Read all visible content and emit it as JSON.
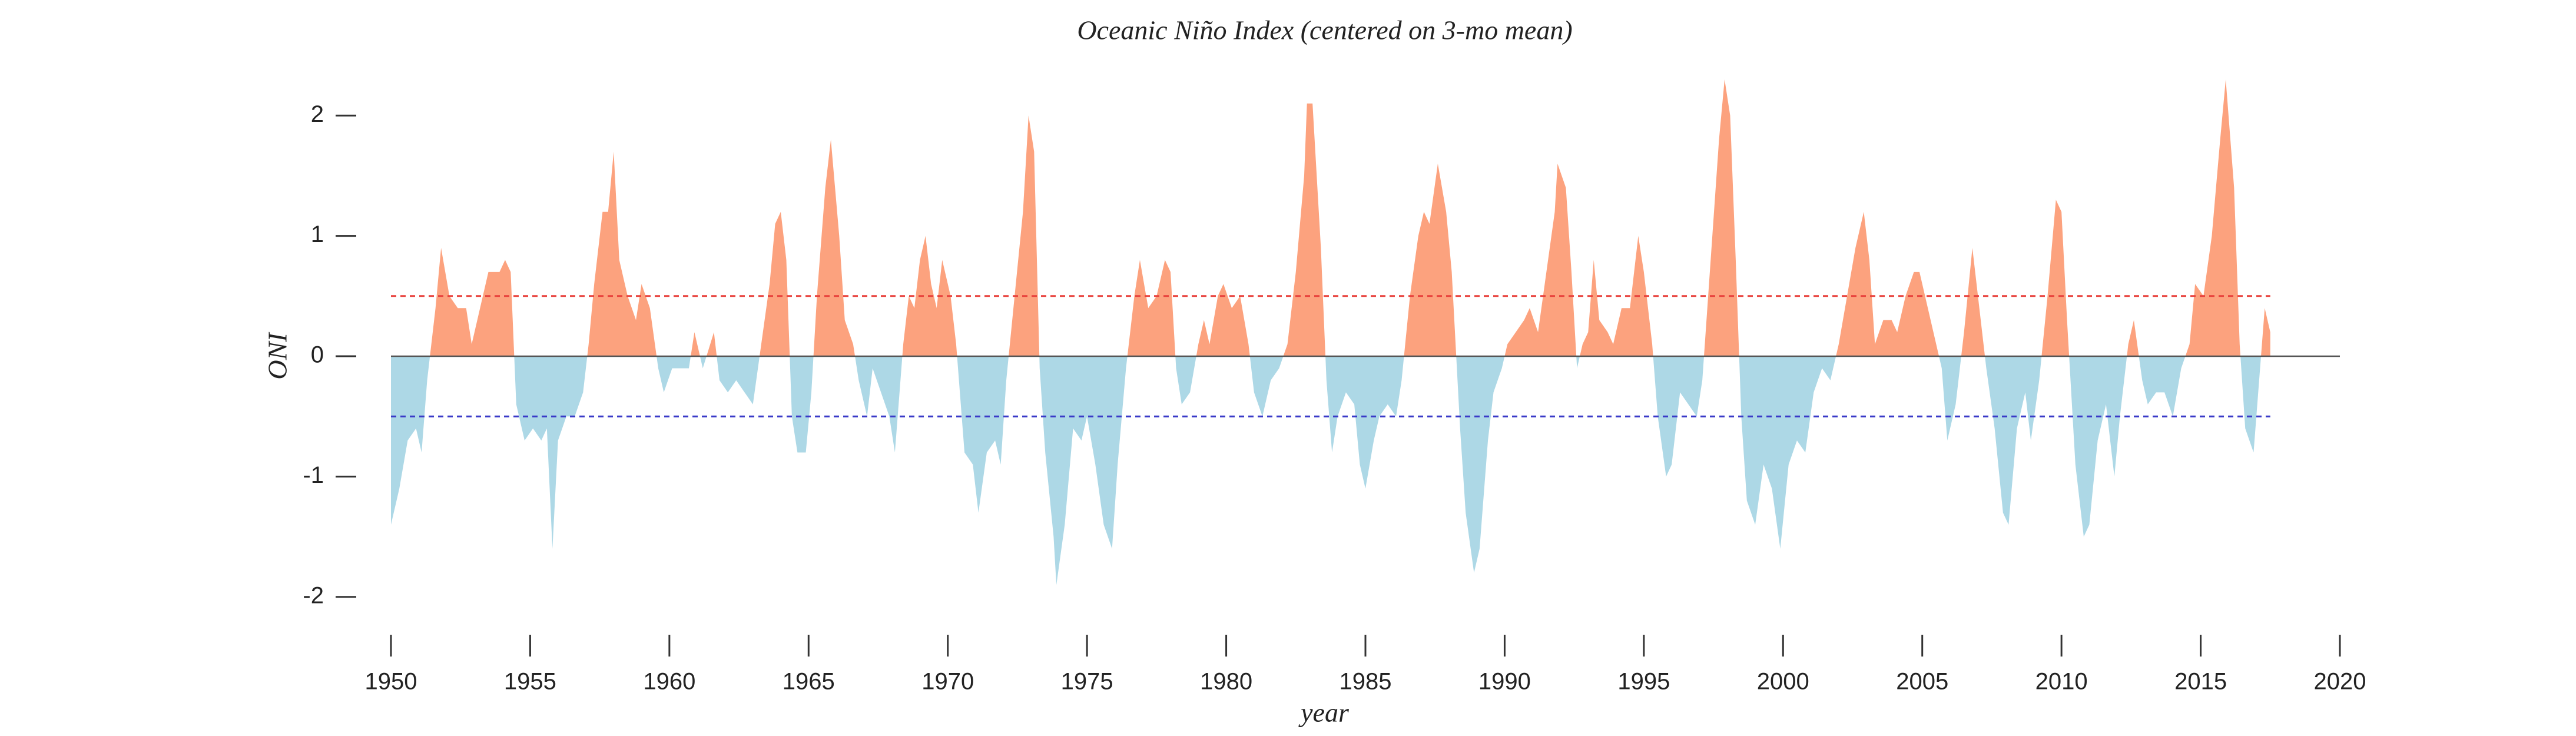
{
  "chart_data": {
    "type": "area",
    "title": "Oceanic Niño Index (centered on 3-mo mean)",
    "x_label": "year",
    "y_label": "ONI",
    "positive_color": "#fca27e",
    "negative_color": "#add8e6",
    "xlim": [
      1950,
      2020
    ],
    "xticks": [
      1950,
      1955,
      1960,
      1965,
      1970,
      1975,
      1980,
      1985,
      1990,
      1995,
      2000,
      2005,
      2010,
      2015,
      2020
    ],
    "ylim": [
      -2.5,
      2.5
    ],
    "yticks": [
      -2,
      -1,
      0,
      1,
      2
    ],
    "reference_lines": [
      {
        "value": 0,
        "color": "#555555",
        "dash": false,
        "full_width": true
      },
      {
        "value": 0.5,
        "color": "#e8403b",
        "dash": true,
        "full_width": false
      },
      {
        "value": -0.5,
        "color": "#3a3ac8",
        "dash": true,
        "full_width": false
      }
    ],
    "x": [
      1950.0,
      1950.3,
      1950.6,
      1950.9,
      1951.1,
      1951.3,
      1951.6,
      1951.8,
      1952.1,
      1952.4,
      1952.7,
      1952.9,
      1953.2,
      1953.5,
      1953.9,
      1954.1,
      1954.3,
      1954.5,
      1954.8,
      1955.1,
      1955.4,
      1955.6,
      1955.8,
      1956.0,
      1956.3,
      1956.6,
      1956.9,
      1957.1,
      1957.3,
      1957.6,
      1957.8,
      1958.0,
      1958.2,
      1958.5,
      1958.8,
      1959.0,
      1959.3,
      1959.6,
      1959.8,
      1960.1,
      1960.4,
      1960.7,
      1960.9,
      1961.2,
      1961.6,
      1961.8,
      1962.1,
      1962.4,
      1962.7,
      1963.0,
      1963.3,
      1963.6,
      1963.8,
      1964.0,
      1964.2,
      1964.4,
      1964.6,
      1964.9,
      1965.1,
      1965.3,
      1965.6,
      1965.8,
      1966.1,
      1966.3,
      1966.6,
      1966.8,
      1967.1,
      1967.3,
      1967.6,
      1967.9,
      1968.1,
      1968.4,
      1968.6,
      1968.8,
      1969.0,
      1969.2,
      1969.4,
      1969.6,
      1969.8,
      1970.1,
      1970.3,
      1970.6,
      1970.9,
      1971.1,
      1971.4,
      1971.7,
      1971.9,
      1972.1,
      1972.4,
      1972.7,
      1972.9,
      1973.1,
      1973.3,
      1973.5,
      1973.8,
      1973.9,
      1974.2,
      1974.5,
      1974.8,
      1975.0,
      1975.3,
      1975.6,
      1975.9,
      1976.1,
      1976.4,
      1976.7,
      1976.9,
      1977.2,
      1977.5,
      1977.8,
      1978.0,
      1978.2,
      1978.4,
      1978.7,
      1979.0,
      1979.2,
      1979.4,
      1979.7,
      1979.9,
      1980.2,
      1980.5,
      1980.8,
      1981.0,
      1981.3,
      1981.6,
      1981.9,
      1982.2,
      1982.5,
      1982.8,
      1982.9,
      1983.1,
      1983.4,
      1983.6,
      1983.8,
      1984.0,
      1984.3,
      1984.6,
      1984.8,
      1985.0,
      1985.3,
      1985.5,
      1985.8,
      1986.1,
      1986.3,
      1986.6,
      1986.9,
      1987.1,
      1987.3,
      1987.6,
      1987.9,
      1988.1,
      1988.4,
      1988.6,
      1988.9,
      1989.1,
      1989.4,
      1989.6,
      1989.9,
      1990.1,
      1990.4,
      1990.7,
      1990.9,
      1991.2,
      1991.5,
      1991.8,
      1991.9,
      1992.2,
      1992.4,
      1992.6,
      1992.8,
      1993.0,
      1993.2,
      1993.4,
      1993.7,
      1993.9,
      1994.2,
      1994.5,
      1994.8,
      1995.0,
      1995.3,
      1995.5,
      1995.8,
      1996.0,
      1996.3,
      1996.6,
      1996.9,
      1997.1,
      1997.4,
      1997.7,
      1997.9,
      1998.1,
      1998.3,
      1998.5,
      1998.7,
      1999.0,
      1999.3,
      1999.6,
      1999.9,
      2000.2,
      2000.5,
      2000.8,
      2001.1,
      2001.4,
      2001.7,
      2002.0,
      2002.3,
      2002.6,
      2002.9,
      2003.1,
      2003.3,
      2003.6,
      2003.9,
      2004.1,
      2004.4,
      2004.7,
      2004.9,
      2005.1,
      2005.4,
      2005.7,
      2005.9,
      2006.2,
      2006.5,
      2006.8,
      2007.0,
      2007.3,
      2007.6,
      2007.9,
      2008.1,
      2008.4,
      2008.7,
      2008.9,
      2009.2,
      2009.5,
      2009.8,
      2010.0,
      2010.2,
      2010.5,
      2010.8,
      2011.0,
      2011.3,
      2011.6,
      2011.9,
      2012.1,
      2012.4,
      2012.6,
      2012.9,
      2013.1,
      2013.4,
      2013.7,
      2014.0,
      2014.3,
      2014.6,
      2014.8,
      2015.1,
      2015.4,
      2015.7,
      2015.9,
      2016.2,
      2016.4,
      2016.6,
      2016.9,
      2017.1,
      2017.3,
      2017.5
    ],
    "values": [
      -1.4,
      -1.1,
      -0.7,
      -0.6,
      -0.8,
      -0.2,
      0.4,
      0.9,
      0.5,
      0.4,
      0.4,
      0.1,
      0.4,
      0.7,
      0.7,
      0.8,
      0.7,
      -0.4,
      -0.7,
      -0.6,
      -0.7,
      -0.6,
      -1.6,
      -0.7,
      -0.5,
      -0.5,
      -0.3,
      0.1,
      0.6,
      1.2,
      1.2,
      1.7,
      0.8,
      0.5,
      0.3,
      0.6,
      0.4,
      -0.1,
      -0.3,
      -0.1,
      -0.1,
      -0.1,
      0.2,
      -0.1,
      0.2,
      -0.2,
      -0.3,
      -0.2,
      -0.3,
      -0.4,
      0.1,
      0.6,
      1.1,
      1.2,
      0.8,
      -0.5,
      -0.8,
      -0.8,
      -0.3,
      0.5,
      1.4,
      1.8,
      1.0,
      0.3,
      0.1,
      -0.2,
      -0.5,
      -0.1,
      -0.3,
      -0.5,
      -0.8,
      0.1,
      0.5,
      0.4,
      0.8,
      1.0,
      0.6,
      0.4,
      0.8,
      0.5,
      0.1,
      -0.8,
      -0.9,
      -1.3,
      -0.8,
      -0.7,
      -0.9,
      -0.2,
      0.5,
      1.2,
      2.0,
      1.7,
      -0.1,
      -0.8,
      -1.5,
      -1.9,
      -1.4,
      -0.6,
      -0.7,
      -0.5,
      -0.9,
      -1.4,
      -1.6,
      -0.9,
      -0.1,
      0.5,
      0.8,
      0.4,
      0.5,
      0.8,
      0.7,
      -0.1,
      -0.4,
      -0.3,
      0.1,
      0.3,
      0.1,
      0.5,
      0.6,
      0.4,
      0.5,
      0.1,
      -0.3,
      -0.5,
      -0.2,
      -0.1,
      0.1,
      0.7,
      1.5,
      2.1,
      2.1,
      0.9,
      -0.2,
      -0.8,
      -0.5,
      -0.3,
      -0.4,
      -0.9,
      -1.1,
      -0.7,
      -0.5,
      -0.4,
      -0.5,
      -0.2,
      0.5,
      1.0,
      1.2,
      1.1,
      1.6,
      1.2,
      0.7,
      -0.6,
      -1.3,
      -1.8,
      -1.6,
      -0.7,
      -0.3,
      -0.1,
      0.1,
      0.2,
      0.3,
      0.4,
      0.2,
      0.7,
      1.2,
      1.6,
      1.4,
      0.7,
      -0.1,
      0.1,
      0.2,
      0.8,
      0.3,
      0.2,
      0.1,
      0.4,
      0.4,
      1.0,
      0.7,
      0.1,
      -0.5,
      -1.0,
      -0.9,
      -0.3,
      -0.4,
      -0.5,
      -0.2,
      0.8,
      1.8,
      2.3,
      2.0,
      0.8,
      -0.5,
      -1.2,
      -1.4,
      -0.9,
      -1.1,
      -1.6,
      -0.9,
      -0.7,
      -0.8,
      -0.3,
      -0.1,
      -0.2,
      0.1,
      0.5,
      0.9,
      1.2,
      0.8,
      0.1,
      0.3,
      0.3,
      0.2,
      0.5,
      0.7,
      0.7,
      0.5,
      0.2,
      -0.1,
      -0.7,
      -0.4,
      0.2,
      0.9,
      0.5,
      -0.1,
      -0.6,
      -1.3,
      -1.4,
      -0.6,
      -0.3,
      -0.7,
      -0.2,
      0.5,
      1.3,
      1.2,
      0.3,
      -0.9,
      -1.5,
      -1.4,
      -0.7,
      -0.4,
      -1.0,
      -0.5,
      0.1,
      0.3,
      -0.2,
      -0.4,
      -0.3,
      -0.3,
      -0.5,
      -0.1,
      0.1,
      0.6,
      0.5,
      1.0,
      1.8,
      2.3,
      1.4,
      0.1,
      -0.6,
      -0.8,
      -0.2,
      0.4,
      0.2
    ]
  }
}
